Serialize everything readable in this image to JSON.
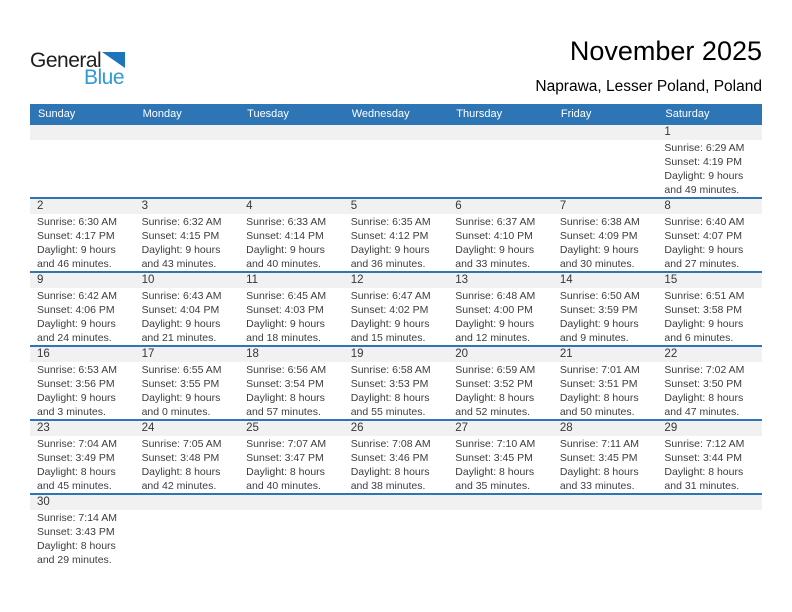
{
  "logo": {
    "part1": "General",
    "part2": "Blue"
  },
  "header": {
    "title": "November 2025",
    "subtitle": "Naprawa, Lesser Poland, Poland"
  },
  "colors": {
    "header_bar_blue": "#2e75b6",
    "week_separator_blue": "#2e75b6",
    "day_band_gray": "#f1f1f1",
    "logo_triangle_blue": "#1c75bc",
    "logo_text_blue": "#2e9bd6",
    "body_text": "#3d3d3d"
  },
  "weekdays": [
    "Sunday",
    "Monday",
    "Tuesday",
    "Wednesday",
    "Thursday",
    "Friday",
    "Saturday"
  ],
  "weeks": [
    [
      null,
      null,
      null,
      null,
      null,
      null,
      {
        "day": "1",
        "lines": [
          "Sunrise: 6:29 AM",
          "Sunset: 4:19 PM",
          "Daylight: 9 hours",
          "and 49 minutes."
        ]
      }
    ],
    [
      {
        "day": "2",
        "lines": [
          "Sunrise: 6:30 AM",
          "Sunset: 4:17 PM",
          "Daylight: 9 hours",
          "and 46 minutes."
        ]
      },
      {
        "day": "3",
        "lines": [
          "Sunrise: 6:32 AM",
          "Sunset: 4:15 PM",
          "Daylight: 9 hours",
          "and 43 minutes."
        ]
      },
      {
        "day": "4",
        "lines": [
          "Sunrise: 6:33 AM",
          "Sunset: 4:14 PM",
          "Daylight: 9 hours",
          "and 40 minutes."
        ]
      },
      {
        "day": "5",
        "lines": [
          "Sunrise: 6:35 AM",
          "Sunset: 4:12 PM",
          "Daylight: 9 hours",
          "and 36 minutes."
        ]
      },
      {
        "day": "6",
        "lines": [
          "Sunrise: 6:37 AM",
          "Sunset: 4:10 PM",
          "Daylight: 9 hours",
          "and 33 minutes."
        ]
      },
      {
        "day": "7",
        "lines": [
          "Sunrise: 6:38 AM",
          "Sunset: 4:09 PM",
          "Daylight: 9 hours",
          "and 30 minutes."
        ]
      },
      {
        "day": "8",
        "lines": [
          "Sunrise: 6:40 AM",
          "Sunset: 4:07 PM",
          "Daylight: 9 hours",
          "and 27 minutes."
        ]
      }
    ],
    [
      {
        "day": "9",
        "lines": [
          "Sunrise: 6:42 AM",
          "Sunset: 4:06 PM",
          "Daylight: 9 hours",
          "and 24 minutes."
        ]
      },
      {
        "day": "10",
        "lines": [
          "Sunrise: 6:43 AM",
          "Sunset: 4:04 PM",
          "Daylight: 9 hours",
          "and 21 minutes."
        ]
      },
      {
        "day": "11",
        "lines": [
          "Sunrise: 6:45 AM",
          "Sunset: 4:03 PM",
          "Daylight: 9 hours",
          "and 18 minutes."
        ]
      },
      {
        "day": "12",
        "lines": [
          "Sunrise: 6:47 AM",
          "Sunset: 4:02 PM",
          "Daylight: 9 hours",
          "and 15 minutes."
        ]
      },
      {
        "day": "13",
        "lines": [
          "Sunrise: 6:48 AM",
          "Sunset: 4:00 PM",
          "Daylight: 9 hours",
          "and 12 minutes."
        ]
      },
      {
        "day": "14",
        "lines": [
          "Sunrise: 6:50 AM",
          "Sunset: 3:59 PM",
          "Daylight: 9 hours",
          "and 9 minutes."
        ]
      },
      {
        "day": "15",
        "lines": [
          "Sunrise: 6:51 AM",
          "Sunset: 3:58 PM",
          "Daylight: 9 hours",
          "and 6 minutes."
        ]
      }
    ],
    [
      {
        "day": "16",
        "lines": [
          "Sunrise: 6:53 AM",
          "Sunset: 3:56 PM",
          "Daylight: 9 hours",
          "and 3 minutes."
        ]
      },
      {
        "day": "17",
        "lines": [
          "Sunrise: 6:55 AM",
          "Sunset: 3:55 PM",
          "Daylight: 9 hours",
          "and 0 minutes."
        ]
      },
      {
        "day": "18",
        "lines": [
          "Sunrise: 6:56 AM",
          "Sunset: 3:54 PM",
          "Daylight: 8 hours",
          "and 57 minutes."
        ]
      },
      {
        "day": "19",
        "lines": [
          "Sunrise: 6:58 AM",
          "Sunset: 3:53 PM",
          "Daylight: 8 hours",
          "and 55 minutes."
        ]
      },
      {
        "day": "20",
        "lines": [
          "Sunrise: 6:59 AM",
          "Sunset: 3:52 PM",
          "Daylight: 8 hours",
          "and 52 minutes."
        ]
      },
      {
        "day": "21",
        "lines": [
          "Sunrise: 7:01 AM",
          "Sunset: 3:51 PM",
          "Daylight: 8 hours",
          "and 50 minutes."
        ]
      },
      {
        "day": "22",
        "lines": [
          "Sunrise: 7:02 AM",
          "Sunset: 3:50 PM",
          "Daylight: 8 hours",
          "and 47 minutes."
        ]
      }
    ],
    [
      {
        "day": "23",
        "lines": [
          "Sunrise: 7:04 AM",
          "Sunset: 3:49 PM",
          "Daylight: 8 hours",
          "and 45 minutes."
        ]
      },
      {
        "day": "24",
        "lines": [
          "Sunrise: 7:05 AM",
          "Sunset: 3:48 PM",
          "Daylight: 8 hours",
          "and 42 minutes."
        ]
      },
      {
        "day": "25",
        "lines": [
          "Sunrise: 7:07 AM",
          "Sunset: 3:47 PM",
          "Daylight: 8 hours",
          "and 40 minutes."
        ]
      },
      {
        "day": "26",
        "lines": [
          "Sunrise: 7:08 AM",
          "Sunset: 3:46 PM",
          "Daylight: 8 hours",
          "and 38 minutes."
        ]
      },
      {
        "day": "27",
        "lines": [
          "Sunrise: 7:10 AM",
          "Sunset: 3:45 PM",
          "Daylight: 8 hours",
          "and 35 minutes."
        ]
      },
      {
        "day": "28",
        "lines": [
          "Sunrise: 7:11 AM",
          "Sunset: 3:45 PM",
          "Daylight: 8 hours",
          "and 33 minutes."
        ]
      },
      {
        "day": "29",
        "lines": [
          "Sunrise: 7:12 AM",
          "Sunset: 3:44 PM",
          "Daylight: 8 hours",
          "and 31 minutes."
        ]
      }
    ],
    [
      {
        "day": "30",
        "lines": [
          "Sunrise: 7:14 AM",
          "Sunset: 3:43 PM",
          "Daylight: 8 hours",
          "and 29 minutes."
        ]
      },
      null,
      null,
      null,
      null,
      null,
      null
    ]
  ]
}
